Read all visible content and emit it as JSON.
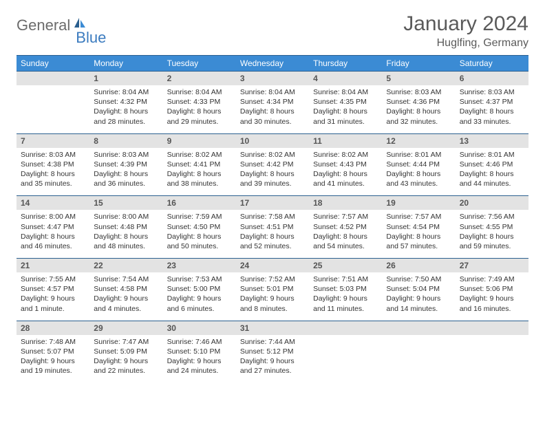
{
  "logo": {
    "part1": "General",
    "part2": "Blue"
  },
  "title": "January 2024",
  "location": "Huglfing, Germany",
  "colors": {
    "header_bg": "#3b8bd4",
    "header_text": "#ffffff",
    "daterow_bg": "#e3e3e3",
    "daterow_text": "#555555",
    "border": "#2a5f8f",
    "title_text": "#5a5a5a",
    "logo_gray": "#6b6b6b",
    "logo_blue": "#3b7bbf"
  },
  "fonts": {
    "title_size_pt": 22,
    "location_size_pt": 12,
    "dayheader_size_pt": 9,
    "daynum_size_pt": 9,
    "cell_size_pt": 8
  },
  "dayHeaders": [
    "Sunday",
    "Monday",
    "Tuesday",
    "Wednesday",
    "Thursday",
    "Friday",
    "Saturday"
  ],
  "weeks": [
    {
      "dates": [
        "",
        "1",
        "2",
        "3",
        "4",
        "5",
        "6"
      ],
      "cells": [
        {
          "sunrise": "",
          "sunset": "",
          "daylight": ""
        },
        {
          "sunrise": "Sunrise: 8:04 AM",
          "sunset": "Sunset: 4:32 PM",
          "daylight": "Daylight: 8 hours and 28 minutes."
        },
        {
          "sunrise": "Sunrise: 8:04 AM",
          "sunset": "Sunset: 4:33 PM",
          "daylight": "Daylight: 8 hours and 29 minutes."
        },
        {
          "sunrise": "Sunrise: 8:04 AM",
          "sunset": "Sunset: 4:34 PM",
          "daylight": "Daylight: 8 hours and 30 minutes."
        },
        {
          "sunrise": "Sunrise: 8:04 AM",
          "sunset": "Sunset: 4:35 PM",
          "daylight": "Daylight: 8 hours and 31 minutes."
        },
        {
          "sunrise": "Sunrise: 8:03 AM",
          "sunset": "Sunset: 4:36 PM",
          "daylight": "Daylight: 8 hours and 32 minutes."
        },
        {
          "sunrise": "Sunrise: 8:03 AM",
          "sunset": "Sunset: 4:37 PM",
          "daylight": "Daylight: 8 hours and 33 minutes."
        }
      ]
    },
    {
      "dates": [
        "7",
        "8",
        "9",
        "10",
        "11",
        "12",
        "13"
      ],
      "cells": [
        {
          "sunrise": "Sunrise: 8:03 AM",
          "sunset": "Sunset: 4:38 PM",
          "daylight": "Daylight: 8 hours and 35 minutes."
        },
        {
          "sunrise": "Sunrise: 8:03 AM",
          "sunset": "Sunset: 4:39 PM",
          "daylight": "Daylight: 8 hours and 36 minutes."
        },
        {
          "sunrise": "Sunrise: 8:02 AM",
          "sunset": "Sunset: 4:41 PM",
          "daylight": "Daylight: 8 hours and 38 minutes."
        },
        {
          "sunrise": "Sunrise: 8:02 AM",
          "sunset": "Sunset: 4:42 PM",
          "daylight": "Daylight: 8 hours and 39 minutes."
        },
        {
          "sunrise": "Sunrise: 8:02 AM",
          "sunset": "Sunset: 4:43 PM",
          "daylight": "Daylight: 8 hours and 41 minutes."
        },
        {
          "sunrise": "Sunrise: 8:01 AM",
          "sunset": "Sunset: 4:44 PM",
          "daylight": "Daylight: 8 hours and 43 minutes."
        },
        {
          "sunrise": "Sunrise: 8:01 AM",
          "sunset": "Sunset: 4:46 PM",
          "daylight": "Daylight: 8 hours and 44 minutes."
        }
      ]
    },
    {
      "dates": [
        "14",
        "15",
        "16",
        "17",
        "18",
        "19",
        "20"
      ],
      "cells": [
        {
          "sunrise": "Sunrise: 8:00 AM",
          "sunset": "Sunset: 4:47 PM",
          "daylight": "Daylight: 8 hours and 46 minutes."
        },
        {
          "sunrise": "Sunrise: 8:00 AM",
          "sunset": "Sunset: 4:48 PM",
          "daylight": "Daylight: 8 hours and 48 minutes."
        },
        {
          "sunrise": "Sunrise: 7:59 AM",
          "sunset": "Sunset: 4:50 PM",
          "daylight": "Daylight: 8 hours and 50 minutes."
        },
        {
          "sunrise": "Sunrise: 7:58 AM",
          "sunset": "Sunset: 4:51 PM",
          "daylight": "Daylight: 8 hours and 52 minutes."
        },
        {
          "sunrise": "Sunrise: 7:57 AM",
          "sunset": "Sunset: 4:52 PM",
          "daylight": "Daylight: 8 hours and 54 minutes."
        },
        {
          "sunrise": "Sunrise: 7:57 AM",
          "sunset": "Sunset: 4:54 PM",
          "daylight": "Daylight: 8 hours and 57 minutes."
        },
        {
          "sunrise": "Sunrise: 7:56 AM",
          "sunset": "Sunset: 4:55 PM",
          "daylight": "Daylight: 8 hours and 59 minutes."
        }
      ]
    },
    {
      "dates": [
        "21",
        "22",
        "23",
        "24",
        "25",
        "26",
        "27"
      ],
      "cells": [
        {
          "sunrise": "Sunrise: 7:55 AM",
          "sunset": "Sunset: 4:57 PM",
          "daylight": "Daylight: 9 hours and 1 minute."
        },
        {
          "sunrise": "Sunrise: 7:54 AM",
          "sunset": "Sunset: 4:58 PM",
          "daylight": "Daylight: 9 hours and 4 minutes."
        },
        {
          "sunrise": "Sunrise: 7:53 AM",
          "sunset": "Sunset: 5:00 PM",
          "daylight": "Daylight: 9 hours and 6 minutes."
        },
        {
          "sunrise": "Sunrise: 7:52 AM",
          "sunset": "Sunset: 5:01 PM",
          "daylight": "Daylight: 9 hours and 8 minutes."
        },
        {
          "sunrise": "Sunrise: 7:51 AM",
          "sunset": "Sunset: 5:03 PM",
          "daylight": "Daylight: 9 hours and 11 minutes."
        },
        {
          "sunrise": "Sunrise: 7:50 AM",
          "sunset": "Sunset: 5:04 PM",
          "daylight": "Daylight: 9 hours and 14 minutes."
        },
        {
          "sunrise": "Sunrise: 7:49 AM",
          "sunset": "Sunset: 5:06 PM",
          "daylight": "Daylight: 9 hours and 16 minutes."
        }
      ]
    },
    {
      "dates": [
        "28",
        "29",
        "30",
        "31",
        "",
        "",
        ""
      ],
      "cells": [
        {
          "sunrise": "Sunrise: 7:48 AM",
          "sunset": "Sunset: 5:07 PM",
          "daylight": "Daylight: 9 hours and 19 minutes."
        },
        {
          "sunrise": "Sunrise: 7:47 AM",
          "sunset": "Sunset: 5:09 PM",
          "daylight": "Daylight: 9 hours and 22 minutes."
        },
        {
          "sunrise": "Sunrise: 7:46 AM",
          "sunset": "Sunset: 5:10 PM",
          "daylight": "Daylight: 9 hours and 24 minutes."
        },
        {
          "sunrise": "Sunrise: 7:44 AM",
          "sunset": "Sunset: 5:12 PM",
          "daylight": "Daylight: 9 hours and 27 minutes."
        },
        {
          "sunrise": "",
          "sunset": "",
          "daylight": ""
        },
        {
          "sunrise": "",
          "sunset": "",
          "daylight": ""
        },
        {
          "sunrise": "",
          "sunset": "",
          "daylight": ""
        }
      ]
    }
  ]
}
